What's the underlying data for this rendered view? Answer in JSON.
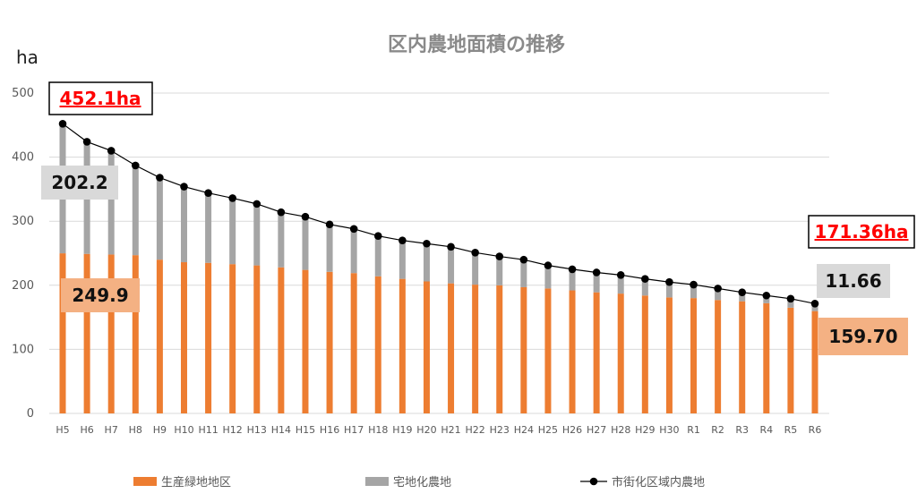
{
  "chart_data": {
    "type": "bar",
    "stacked": true,
    "title": "区内農地面積の推移",
    "ylabel": "ha",
    "ylim": [
      0,
      500
    ],
    "yticks": [
      0,
      100,
      200,
      300,
      400,
      500
    ],
    "grid": true,
    "legend_position": "bottom",
    "categories": [
      "H5",
      "H6",
      "H7",
      "H8",
      "H9",
      "H10",
      "H11",
      "H12",
      "H13",
      "H14",
      "H15",
      "H16",
      "H17",
      "H18",
      "H19",
      "H20",
      "H21",
      "H22",
      "H23",
      "H24",
      "H25",
      "H26",
      "H27",
      "H28",
      "H29",
      "H30",
      "R1",
      "R2",
      "R3",
      "R4",
      "R5",
      "R6"
    ],
    "series": [
      {
        "name": "生産緑地地区",
        "type": "bar",
        "color": "#ed7d31",
        "values": [
          249.9,
          249,
          248,
          247,
          240,
          236,
          235,
          233,
          231,
          228,
          224,
          221,
          219,
          214,
          210,
          206,
          203,
          201,
          200,
          197,
          195,
          192,
          189,
          187,
          184,
          181,
          180,
          177,
          175,
          172,
          165,
          159.7
        ]
      },
      {
        "name": "宅地化農地",
        "type": "bar",
        "color": "#a5a5a5",
        "values": [
          202.2,
          175,
          162,
          140,
          128,
          118,
          109,
          103,
          96,
          86,
          83,
          74,
          69,
          63,
          60,
          59,
          57,
          50,
          45,
          43,
          36,
          33,
          31,
          29,
          26,
          24,
          21,
          18,
          14,
          12,
          14,
          11.66
        ]
      },
      {
        "name": "市街化区域内農地",
        "type": "line",
        "color": "#000000",
        "values": [
          452.1,
          424,
          410,
          387,
          368,
          354,
          344,
          336,
          327,
          314,
          307,
          295,
          288,
          277,
          270,
          265,
          260,
          251,
          245,
          240,
          231,
          225,
          220,
          216,
          210,
          205,
          201,
          195,
          189,
          184,
          179,
          171.36
        ]
      }
    ],
    "annotations": {
      "total_first": "452.1ha",
      "total_last": "171.36ha",
      "gray_first": "202.2",
      "gray_last": "11.66",
      "orange_first": "249.9",
      "orange_last": "159.70"
    },
    "colors": {
      "callout_gray_bg": "#d9d9d9",
      "callout_orange_bg": "#f4b183",
      "callout_red": "#ff0000",
      "gridline": "#d9d9d9"
    }
  }
}
